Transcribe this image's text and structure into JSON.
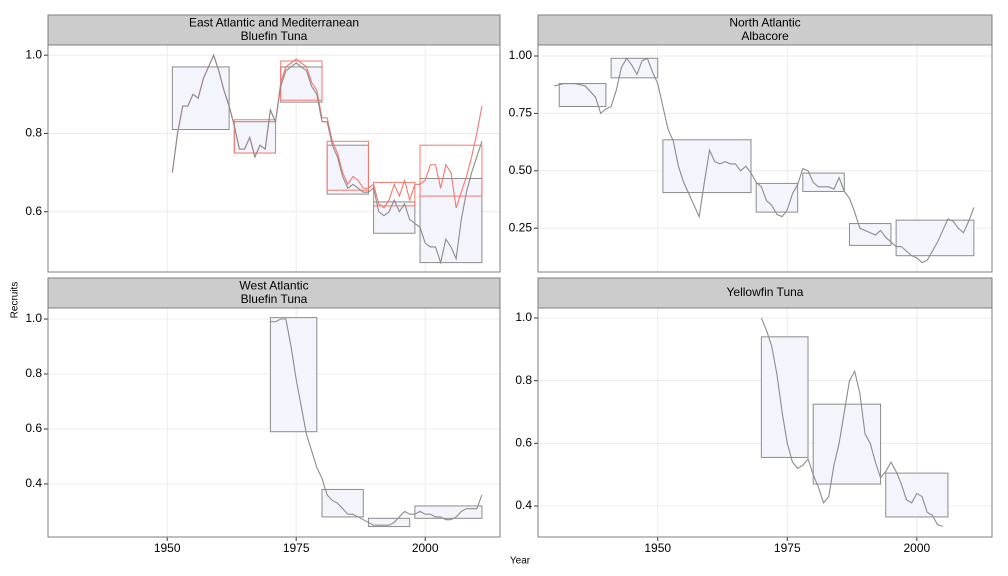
{
  "chart_data": {
    "type": "line",
    "xlabel": "Year",
    "ylabel": "Recruits",
    "xlim": [
      1926.9,
      2014.5
    ],
    "xticks": [
      1950,
      1975,
      2000
    ],
    "grid": true,
    "panels": [
      {
        "title": [
          "East Atlantic and Mediterranean",
          "Bluefin Tuna"
        ],
        "ylim": [
          0.446,
          1.026
        ],
        "yticks": [
          0.6,
          0.8,
          {
            "value": 1,
            "label": "1.0"
          }
        ],
        "x": [
          1951,
          1952,
          1953,
          1954,
          1955,
          1956,
          1957,
          1958,
          1959,
          1960,
          1961,
          1962,
          1963,
          1964,
          1965,
          1966,
          1967,
          1968,
          1969,
          1970,
          1971,
          1972,
          1973,
          1974,
          1975,
          1976,
          1977,
          1978,
          1979,
          1980,
          1981,
          1982,
          1983,
          1984,
          1985,
          1986,
          1987,
          1988,
          1989,
          1990,
          1991,
          1992,
          1993,
          1994,
          1995,
          1996,
          1997,
          1998,
          1999,
          2000,
          2001,
          2002,
          2003,
          2004,
          2005,
          2006,
          2007,
          2008,
          2009,
          2010,
          2011
        ],
        "series": [
          {
            "color": "#f8766d",
            "values": [
              0.7,
              0.8,
              0.87,
              0.87,
              0.9,
              0.89,
              0.94,
              0.97,
              1.0,
              0.96,
              0.91,
              0.87,
              0.82,
              0.76,
              0.76,
              0.79,
              0.74,
              0.77,
              0.76,
              0.86,
              0.83,
              0.93,
              0.97,
              0.98,
              0.99,
              0.98,
              0.97,
              0.93,
              0.91,
              0.84,
              0.84,
              0.78,
              0.75,
              0.7,
              0.67,
              0.69,
              0.68,
              0.66,
              0.66,
              0.67,
              0.62,
              0.61,
              0.63,
              0.67,
              0.64,
              0.68,
              0.63,
              0.67,
              0.67,
              0.68,
              0.72,
              0.72,
              0.66,
              0.72,
              0.7,
              0.61,
              0.65,
              0.69,
              0.74,
              0.8,
              0.87
            ],
            "boxes": [
              {
                "start": 1963,
                "end": 1971,
                "low": 0.75,
                "high": 0.835
              },
              {
                "start": 1972,
                "end": 1980,
                "low": 0.885,
                "high": 0.985
              },
              {
                "start": 1981,
                "end": 1989,
                "low": 0.655,
                "high": 0.78
              },
              {
                "start": 1990,
                "end": 1998,
                "low": 0.615,
                "high": 0.675
              },
              {
                "start": 1999,
                "end": 2011,
                "low": 0.64,
                "high": 0.77
              }
            ]
          },
          {
            "color": "#8c8c8c",
            "fill": "#f4f4fc",
            "values": [
              0.7,
              0.8,
              0.87,
              0.87,
              0.9,
              0.89,
              0.94,
              0.97,
              1.0,
              0.96,
              0.91,
              0.87,
              0.82,
              0.76,
              0.76,
              0.79,
              0.74,
              0.77,
              0.76,
              0.86,
              0.83,
              0.92,
              0.96,
              0.97,
              0.98,
              0.97,
              0.96,
              0.92,
              0.9,
              0.83,
              0.83,
              0.77,
              0.74,
              0.69,
              0.66,
              0.67,
              0.66,
              0.65,
              0.65,
              0.66,
              0.6,
              0.59,
              0.6,
              0.63,
              0.6,
              0.62,
              0.58,
              0.57,
              0.56,
              0.52,
              0.51,
              0.51,
              0.47,
              0.53,
              0.51,
              0.48,
              0.58,
              0.65,
              0.7,
              0.74,
              0.78
            ],
            "boxes": [
              {
                "start": 1951,
                "end": 1962,
                "low": 0.81,
                "high": 0.97
              },
              {
                "start": 1963,
                "end": 1971,
                "low": 0.75,
                "high": 0.83
              },
              {
                "start": 1972,
                "end": 1980,
                "low": 0.88,
                "high": 0.97
              },
              {
                "start": 1981,
                "end": 1989,
                "low": 0.645,
                "high": 0.77
              },
              {
                "start": 1990,
                "end": 1998,
                "low": 0.545,
                "high": 0.625
              },
              {
                "start": 1999,
                "end": 2011,
                "low": 0.47,
                "high": 0.685
              }
            ]
          }
        ]
      },
      {
        "title": [
          "North Atlantic",
          "Albacore"
        ],
        "ylim": [
          0.059,
          1.048
        ],
        "yticks": [
          {
            "value": 0.25,
            "label": "0.25"
          },
          {
            "value": 0.5,
            "label": "0.50"
          },
          0.75,
          {
            "value": 1,
            "label": "1.00"
          }
        ],
        "x": [
          1930,
          1932,
          1934,
          1936,
          1938,
          1939,
          1940,
          1941,
          1942,
          1943,
          1944,
          1945,
          1946,
          1947,
          1948,
          1949,
          1950,
          1951,
          1952,
          1953,
          1954,
          1955,
          1956,
          1957,
          1958,
          1959,
          1960,
          1961,
          1962,
          1963,
          1964,
          1965,
          1966,
          1967,
          1968,
          1969,
          1970,
          1971,
          1972,
          1973,
          1974,
          1975,
          1976,
          1977,
          1978,
          1979,
          1980,
          1981,
          1982,
          1983,
          1984,
          1985,
          1986,
          1987,
          1988,
          1989,
          1990,
          1991,
          1992,
          1993,
          1994,
          1995,
          1996,
          1997,
          1998,
          1999,
          2000,
          2001,
          2002,
          2003,
          2004,
          2005,
          2006,
          2007,
          2008,
          2009,
          2010,
          2011
        ],
        "series": [
          {
            "color": "#8c8c8c",
            "fill": "#f4f4fc",
            "values": [
              0.87,
              0.88,
              0.88,
              0.87,
              0.82,
              0.75,
              0.77,
              0.78,
              0.85,
              0.95,
              0.99,
              0.96,
              0.92,
              0.98,
              0.99,
              0.93,
              0.88,
              0.78,
              0.68,
              0.63,
              0.52,
              0.45,
              0.4,
              0.35,
              0.3,
              0.45,
              0.59,
              0.54,
              0.53,
              0.54,
              0.53,
              0.53,
              0.5,
              0.52,
              0.49,
              0.45,
              0.43,
              0.37,
              0.35,
              0.31,
              0.3,
              0.33,
              0.4,
              0.44,
              0.51,
              0.5,
              0.45,
              0.43,
              0.43,
              0.43,
              0.42,
              0.47,
              0.41,
              0.38,
              0.32,
              0.25,
              0.24,
              0.23,
              0.22,
              0.24,
              0.21,
              0.19,
              0.17,
              0.17,
              0.15,
              0.13,
              0.12,
              0.1,
              0.11,
              0.15,
              0.19,
              0.24,
              0.29,
              0.28,
              0.25,
              0.23,
              0.28,
              0.34
            ],
            "boxes": [
              {
                "start": 1931,
                "end": 1940,
                "low": 0.78,
                "high": 0.88
              },
              {
                "start": 1941,
                "end": 1950,
                "low": 0.905,
                "high": 0.99
              },
              {
                "start": 1951,
                "end": 1968,
                "low": 0.405,
                "high": 0.635
              },
              {
                "start": 1969,
                "end": 1977,
                "low": 0.32,
                "high": 0.445
              },
              {
                "start": 1978,
                "end": 1986,
                "low": 0.41,
                "high": 0.49
              },
              {
                "start": 1987,
                "end": 1995,
                "low": 0.175,
                "high": 0.27
              },
              {
                "start": 1996,
                "end": 2011,
                "low": 0.13,
                "high": 0.285
              }
            ]
          }
        ]
      },
      {
        "title": [
          "West Atlantic",
          "Bluefin Tuna"
        ],
        "ylim": [
          0.207,
          1.04
        ],
        "yticks": [
          0.4,
          0.6,
          0.8,
          {
            "value": 1,
            "label": "1.0"
          }
        ],
        "x": [
          1970,
          1971,
          1972,
          1973,
          1974,
          1975,
          1976,
          1977,
          1978,
          1979,
          1980,
          1981,
          1982,
          1983,
          1984,
          1985,
          1986,
          1987,
          1988,
          1989,
          1990,
          1991,
          1992,
          1993,
          1994,
          1995,
          1996,
          1997,
          1998,
          1999,
          2000,
          2001,
          2002,
          2003,
          2004,
          2005,
          2006,
          2007,
          2008,
          2009,
          2010,
          2011
        ],
        "series": [
          {
            "color": "#8c8c8c",
            "fill": "#f4f4fc",
            "values": [
              0.99,
              0.99,
              1.0,
              1.0,
              0.9,
              0.78,
              0.68,
              0.58,
              0.52,
              0.46,
              0.42,
              0.36,
              0.34,
              0.33,
              0.31,
              0.29,
              0.29,
              0.28,
              0.27,
              0.26,
              0.25,
              0.25,
              0.25,
              0.25,
              0.26,
              0.28,
              0.3,
              0.29,
              0.29,
              0.3,
              0.29,
              0.29,
              0.28,
              0.28,
              0.27,
              0.27,
              0.28,
              0.3,
              0.31,
              0.31,
              0.31,
              0.36
            ],
            "boxes": [
              {
                "start": 1970,
                "end": 1979,
                "low": 0.59,
                "high": 1.005
              },
              {
                "start": 1980,
                "end": 1988,
                "low": 0.28,
                "high": 0.38
              },
              {
                "start": 1989,
                "end": 1997,
                "low": 0.245,
                "high": 0.275
              },
              {
                "start": 1998,
                "end": 2011,
                "low": 0.275,
                "high": 0.32
              }
            ]
          }
        ]
      },
      {
        "title": [
          "Yellowfin Tuna"
        ],
        "ylim": [
          0.301,
          1.032
        ],
        "yticks": [
          0.4,
          0.6,
          0.8,
          {
            "value": 1,
            "label": "1.0"
          }
        ],
        "x": [
          1970,
          1971,
          1972,
          1973,
          1974,
          1975,
          1976,
          1977,
          1978,
          1979,
          1980,
          1981,
          1982,
          1983,
          1984,
          1985,
          1986,
          1987,
          1988,
          1989,
          1990,
          1991,
          1992,
          1993,
          1994,
          1995,
          1996,
          1997,
          1998,
          1999,
          2000,
          2001,
          2002,
          2003,
          2004,
          2005
        ],
        "series": [
          {
            "color": "#8c8c8c",
            "fill": "#f4f4fc",
            "values": [
              1.0,
              0.96,
              0.91,
              0.82,
              0.7,
              0.6,
              0.54,
              0.52,
              0.53,
              0.55,
              0.5,
              0.46,
              0.41,
              0.43,
              0.53,
              0.6,
              0.7,
              0.8,
              0.83,
              0.76,
              0.63,
              0.6,
              0.54,
              0.49,
              0.51,
              0.54,
              0.51,
              0.47,
              0.42,
              0.41,
              0.44,
              0.43,
              0.38,
              0.37,
              0.34,
              0.335
            ],
            "boxes": [
              {
                "start": 1970,
                "end": 1979,
                "low": 0.555,
                "high": 0.94
              },
              {
                "start": 1980,
                "end": 1993,
                "low": 0.47,
                "high": 0.725
              },
              {
                "start": 1994,
                "end": 2006,
                "low": 0.365,
                "high": 0.505
              }
            ]
          }
        ]
      }
    ]
  }
}
